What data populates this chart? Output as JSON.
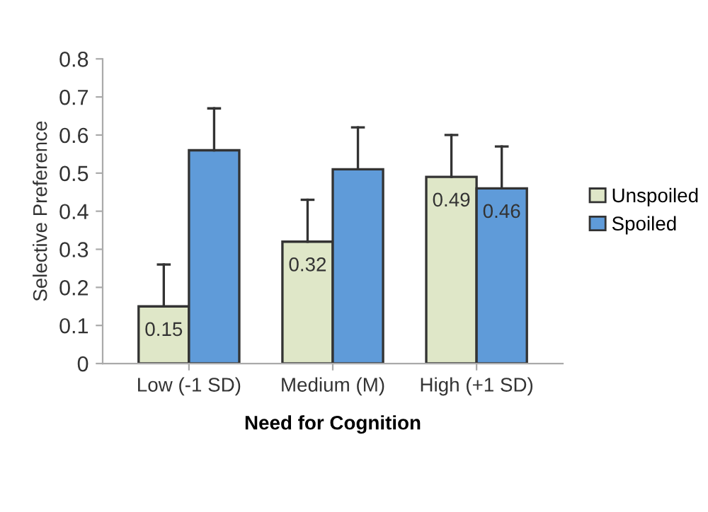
{
  "chart_data": {
    "type": "bar",
    "xlabel": "Need for Cognition",
    "ylabel": "Selective Preference",
    "categories": [
      "Low (-1 SD)",
      "Medium (M)",
      "High (+1 SD)"
    ],
    "series": [
      {
        "name": "Unspoiled",
        "color": "#dfe7c8",
        "values": [
          0.15,
          0.32,
          0.49
        ],
        "errors": [
          [
            0.15,
            0.26
          ],
          [
            0.32,
            0.43
          ],
          [
            0.49,
            0.6
          ]
        ],
        "value_labels": [
          "0.15",
          "0.32",
          "0.49"
        ]
      },
      {
        "name": "Spoiled",
        "color": "#5f9bd9",
        "values": [
          0.56,
          0.51,
          0.46
        ],
        "errors": [
          [
            0.56,
            0.67
          ],
          [
            0.51,
            0.62
          ],
          [
            0.46,
            0.57
          ]
        ],
        "value_labels": [
          null,
          null,
          "0.46"
        ]
      }
    ],
    "ylim": [
      0,
      0.8
    ],
    "yticks": [
      0,
      0.1,
      0.2,
      0.3,
      0.4,
      0.5,
      0.6,
      0.7,
      0.8
    ],
    "grid": false,
    "legend": "right"
  }
}
